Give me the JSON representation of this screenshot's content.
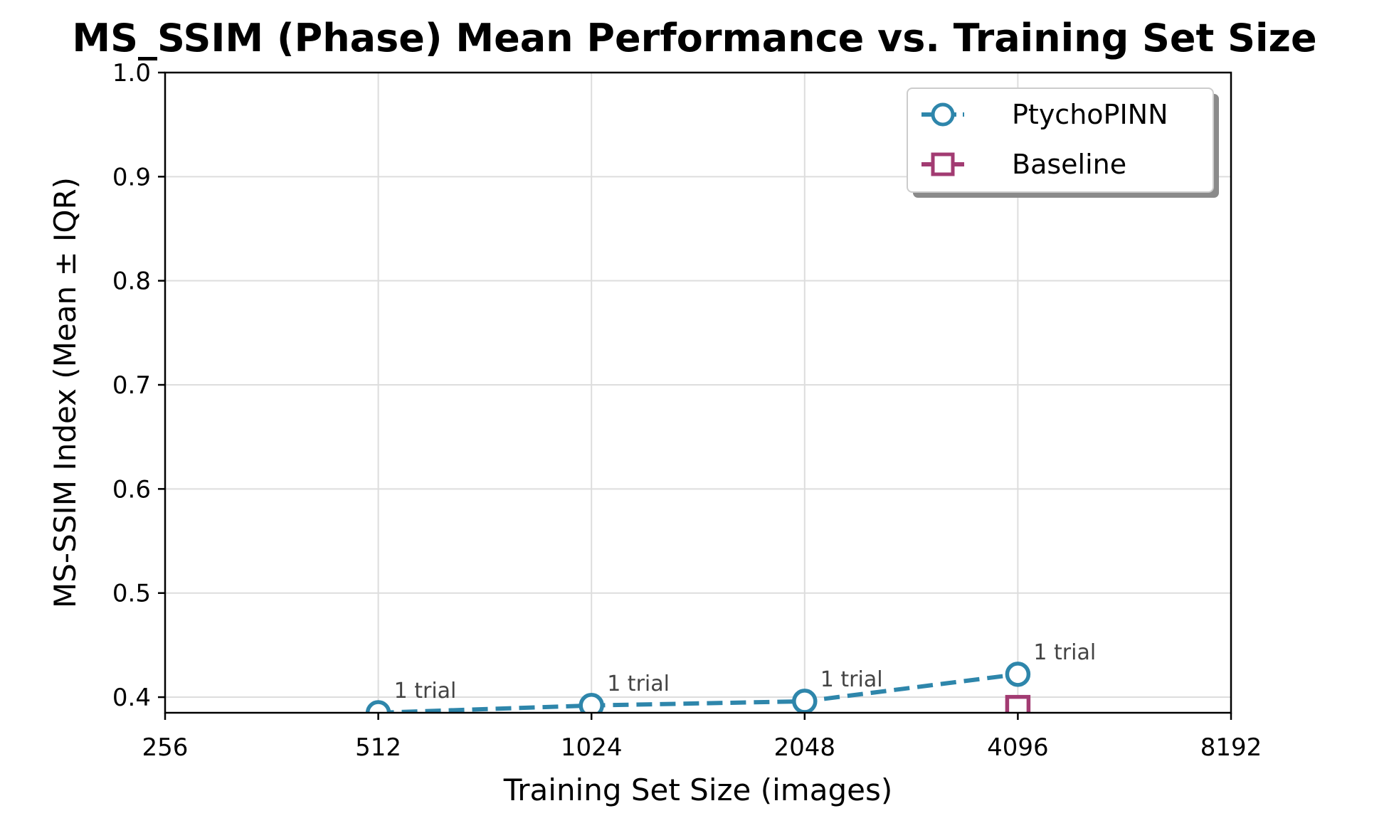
{
  "chart_data": {
    "type": "line",
    "title": "MS_SSIM (Phase) Mean Performance vs. Training Set Size",
    "xlabel": "Training Set Size (images)",
    "ylabel": "MS-SSIM Index (Mean ± IQR)",
    "xscale": "log2",
    "xlim": [
      256,
      8192
    ],
    "ylim": [
      0.385,
      1.0
    ],
    "x_ticks": [
      256,
      512,
      1024,
      2048,
      4096,
      8192
    ],
    "x_tick_labels": [
      "256",
      "512",
      "1024",
      "2048",
      "4096",
      "8192"
    ],
    "y_ticks": [
      0.4,
      0.5,
      0.6,
      0.7,
      0.8,
      0.9,
      1.0
    ],
    "y_tick_labels": [
      "0.4",
      "0.5",
      "0.6",
      "0.7",
      "0.8",
      "0.9",
      "1.0"
    ],
    "grid": true,
    "legend_position": "top-right",
    "series": [
      {
        "name": "PtychoPINN",
        "color": "#2e86ab",
        "marker": "circle",
        "line_style": "dashed",
        "x": [
          512,
          1024,
          2048,
          4096
        ],
        "values": [
          0.385,
          0.392,
          0.396,
          0.422
        ],
        "annotations": [
          "1 trial",
          "1 trial",
          "1 trial",
          "1 trial"
        ]
      },
      {
        "name": "Baseline",
        "color": "#a23b72",
        "marker": "square",
        "line_style": "solid",
        "x": [
          4096
        ],
        "values": [
          0.39
        ],
        "annotations": []
      }
    ]
  }
}
